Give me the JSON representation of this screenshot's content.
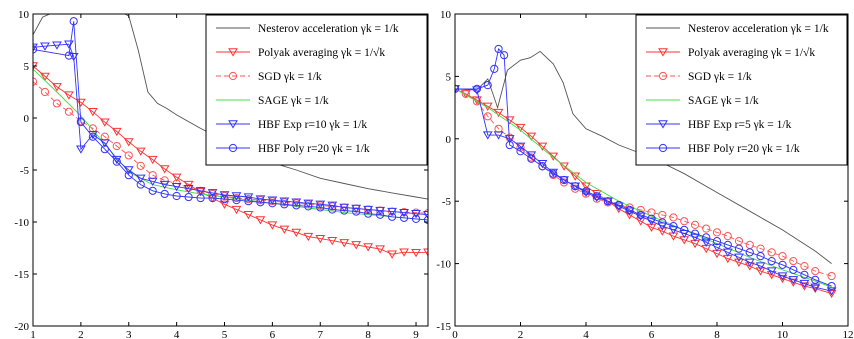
{
  "chart_data": [
    {
      "type": "line",
      "title": "",
      "xlabel": "",
      "ylabel": "",
      "xlim": [
        1,
        9.25
      ],
      "ylim": [
        -20,
        10
      ],
      "xticks": [
        "1",
        "2",
        "3",
        "4",
        "5",
        "6",
        "7",
        "8",
        "9"
      ],
      "yticks": [
        "10",
        "5",
        "0",
        "-5",
        "-10",
        "-15",
        "-20"
      ],
      "legend_position": "top-right",
      "grid": false,
      "series": [
        {
          "name": "Nesterov acceleration γk = 1/k",
          "color": "#555555",
          "marker": "none",
          "dash": "solid",
          "x": [
            1,
            1.2,
            1.5,
            2,
            2.5,
            2.8,
            3.0,
            3.2,
            3.4,
            3.6,
            3.8,
            4.0,
            4.5,
            5,
            5.5,
            6,
            6.5,
            7,
            7.5,
            8,
            8.5,
            9,
            9.25
          ],
          "y": [
            8,
            9.7,
            10.3,
            10.8,
            10.7,
            10.3,
            9.8,
            6.5,
            2.5,
            1.4,
            0.9,
            0.3,
            -1,
            -2.2,
            -3.3,
            -4.3,
            -5.0,
            -5.8,
            -6.3,
            -6.8,
            -7.2,
            -7.6,
            -7.8
          ]
        },
        {
          "name": "Polyak averaging γk = 1/√k",
          "color": "#ff3333",
          "marker": "tri-down",
          "dash": "solid",
          "x": [
            1,
            1.25,
            1.5,
            1.75,
            2,
            2.25,
            2.5,
            2.75,
            3,
            3.25,
            3.5,
            3.75,
            4,
            4.25,
            4.5,
            4.75,
            5,
            5.25,
            5.5,
            5.75,
            6,
            6.25,
            6.5,
            6.75,
            7,
            7.25,
            7.5,
            7.75,
            8,
            8.25,
            8.5,
            8.75,
            9,
            9.25
          ],
          "y": [
            5,
            4,
            3,
            2.2,
            1.5,
            0.6,
            -0.4,
            -1.3,
            -2.3,
            -3.2,
            -4.0,
            -4.9,
            -5.7,
            -6.4,
            -7.1,
            -7.7,
            -8.3,
            -8.8,
            -9.3,
            -9.8,
            -10.3,
            -10.7,
            -11.0,
            -11.4,
            -11.6,
            -11.8,
            -12.0,
            -12.2,
            -12.4,
            -12.6,
            -13.1,
            -12.9,
            -12.95,
            -12.9
          ]
        },
        {
          "name": "SGD γk = 1/k",
          "color": "#ff5555",
          "marker": "circle",
          "dash": "dashed",
          "x": [
            1,
            1.25,
            1.5,
            1.75,
            2,
            2.25,
            2.5,
            2.75,
            3,
            3.25,
            3.5,
            3.75,
            4,
            4.25,
            4.5,
            4.75,
            5,
            5.25,
            5.5,
            5.75,
            6,
            6.25,
            6.5,
            6.75,
            7,
            7.25,
            7.5,
            7.75,
            8,
            8.25,
            8.5,
            8.75,
            9,
            9.25
          ],
          "y": [
            3.5,
            2.5,
            1.4,
            0.6,
            -0.3,
            -1.0,
            -1.8,
            -2.7,
            -3.6,
            -4.6,
            -5.5,
            -6.0,
            -6.3,
            -6.7,
            -7.0,
            -7.3,
            -7.5,
            -7.7,
            -7.8,
            -7.9,
            -8.0,
            -8.1,
            -8.2,
            -8.3,
            -8.4,
            -8.5,
            -8.6,
            -8.7,
            -8.8,
            -8.9,
            -9.0,
            -9.05,
            -9.1,
            -9.15
          ]
        },
        {
          "name": "SAGE γk = 1/k",
          "color": "#44dd44",
          "marker": "none",
          "dash": "solid",
          "x": [
            1,
            1.5,
            2,
            2.5,
            3,
            3.5,
            4,
            4.5,
            5,
            5.5,
            6,
            6.5,
            7,
            7.5,
            8,
            8.5,
            9,
            9.25
          ],
          "y": [
            4.7,
            2.5,
            0.2,
            -2.5,
            -5.2,
            -6.4,
            -6.9,
            -7.3,
            -7.6,
            -7.9,
            -8.2,
            -8.5,
            -8.8,
            -9.1,
            -9.3,
            -9.5,
            -9.7,
            -9.8
          ]
        },
        {
          "name": "HBF Exp r=10 γk = 1/k",
          "color": "#3333ff",
          "marker": "tri-down",
          "dash": "solid",
          "x": [
            1,
            1.25,
            1.5,
            1.75,
            1.85,
            2,
            2.25,
            2.5,
            2.75,
            3,
            3.25,
            3.5,
            3.75,
            4,
            4.25,
            4.5,
            4.75,
            5,
            5.25,
            5.5,
            5.75,
            6,
            6.25,
            6.5,
            6.75,
            7,
            7.25,
            7.5,
            7.75,
            8,
            8.25,
            8.5,
            8.75,
            9,
            9.25
          ],
          "y": [
            6.8,
            6.9,
            7.0,
            7.1,
            5.9,
            -3.0,
            -1.6,
            -2.4,
            -4.0,
            -5.0,
            -5.8,
            -6.1,
            -6.4,
            -6.6,
            -6.8,
            -7.0,
            -7.2,
            -7.4,
            -7.5,
            -7.6,
            -7.8,
            -7.9,
            -8.0,
            -8.1,
            -8.2,
            -8.3,
            -8.4,
            -8.6,
            -8.7,
            -8.8,
            -8.9,
            -9.0,
            -9.1,
            -9.2,
            -9.3
          ]
        },
        {
          "name": "HBF Poly r=20 γk = 1/k",
          "color": "#3333ff",
          "marker": "circle",
          "dash": "solid",
          "x": [
            1,
            1.75,
            1.85,
            2,
            2.25,
            2.5,
            2.75,
            3,
            3.25,
            3.5,
            3.75,
            4,
            4.25,
            4.5,
            4.75,
            5,
            5.25,
            5.5,
            5.75,
            6,
            6.25,
            6.5,
            6.75,
            7,
            7.25,
            7.5,
            7.75,
            8,
            8.25,
            8.5,
            8.75,
            9,
            9.25
          ],
          "y": [
            6.6,
            6.0,
            9.3,
            -0.4,
            -1.8,
            -3.0,
            -4.2,
            -5.5,
            -6.4,
            -7.0,
            -7.3,
            -7.5,
            -7.6,
            -7.7,
            -7.7,
            -7.8,
            -7.9,
            -8.0,
            -8.1,
            -8.2,
            -8.3,
            -8.4,
            -8.5,
            -8.6,
            -8.8,
            -8.9,
            -9.0,
            -9.2,
            -9.3,
            -9.5,
            -9.6,
            -9.7,
            -9.8
          ]
        }
      ]
    },
    {
      "type": "line",
      "title": "",
      "xlabel": "",
      "ylabel": "",
      "xlim": [
        0,
        12
      ],
      "ylim": [
        -15,
        10
      ],
      "xticks": [
        "0",
        "2",
        "4",
        "6",
        "8",
        "10",
        "12"
      ],
      "yticks": [
        "10",
        "5",
        "0",
        "-5",
        "-10",
        "-15"
      ],
      "legend_position": "top-right",
      "grid": false,
      "series": [
        {
          "name": "Nesterov acceleration γk = 1/k",
          "color": "#555555",
          "marker": "none",
          "dash": "solid",
          "x": [
            0,
            0.7,
            1.0,
            1.3,
            1.6,
            2.0,
            2.3,
            2.6,
            3.0,
            3.3,
            3.6,
            4,
            4.5,
            5,
            6,
            7,
            8,
            9,
            10,
            11,
            11.5
          ],
          "y": [
            4,
            4,
            4.8,
            2.5,
            5.5,
            6.3,
            6.5,
            7.0,
            6.0,
            4.5,
            2.0,
            0.8,
            0.2,
            -0.5,
            -1.5,
            -2.8,
            -4.3,
            -5.8,
            -7.3,
            -9.0,
            -10.0
          ]
        },
        {
          "name": "Polyak averaging γk = 1/√k",
          "color": "#ff3333",
          "marker": "tri-down",
          "dash": "solid",
          "x": [
            0,
            0.33,
            0.67,
            1.0,
            1.33,
            1.67,
            2.0,
            2.33,
            2.67,
            3.0,
            3.33,
            3.67,
            4.0,
            4.33,
            4.67,
            5.0,
            5.33,
            5.67,
            6.0,
            6.33,
            6.67,
            7.0,
            7.33,
            7.67,
            8.0,
            8.33,
            8.67,
            9.0,
            9.33,
            9.67,
            10.0,
            10.33,
            10.67,
            11.0,
            11.5
          ],
          "y": [
            4,
            3.6,
            3.1,
            2.6,
            2.1,
            1.5,
            0.9,
            0.2,
            -0.6,
            -1.4,
            -2.2,
            -3.0,
            -3.8,
            -4.4,
            -5.0,
            -5.6,
            -6.1,
            -6.6,
            -7.1,
            -7.4,
            -7.8,
            -8.1,
            -8.4,
            -8.8,
            -9.2,
            -9.6,
            -9.9,
            -10.2,
            -10.6,
            -10.9,
            -11.2,
            -11.5,
            -11.8,
            -12.0,
            -12.4
          ]
        },
        {
          "name": "SGD γk = 1/k",
          "color": "#ff5555",
          "marker": "circle",
          "dash": "dashed",
          "x": [
            0,
            0.33,
            0.67,
            1.0,
            1.33,
            1.67,
            2.0,
            2.33,
            2.67,
            3.0,
            3.33,
            3.67,
            4.0,
            4.33,
            4.67,
            5.0,
            5.33,
            5.67,
            6.0,
            6.33,
            6.67,
            7.0,
            7.33,
            7.67,
            8.0,
            8.33,
            8.67,
            9.0,
            9.33,
            9.67,
            10.0,
            10.33,
            10.67,
            11.0,
            11.5
          ],
          "y": [
            4,
            3.6,
            3.0,
            1.8,
            0.8,
            0.1,
            -0.7,
            -1.5,
            -2.2,
            -2.9,
            -3.5,
            -4.0,
            -4.4,
            -4.8,
            -5.1,
            -5.3,
            -5.5,
            -5.7,
            -5.9,
            -6.1,
            -6.3,
            -6.6,
            -6.9,
            -7.2,
            -7.5,
            -7.8,
            -8.2,
            -8.5,
            -8.8,
            -9.1,
            -9.4,
            -9.8,
            -10.2,
            -10.6,
            -11.0
          ]
        },
        {
          "name": "SAGE γk = 1/k",
          "color": "#44dd44",
          "marker": "none",
          "dash": "solid",
          "x": [
            0,
            1,
            2,
            3,
            4,
            5,
            6,
            7,
            8,
            9,
            10,
            11,
            11.5
          ],
          "y": [
            4,
            2.5,
            0.7,
            -1.5,
            -3.5,
            -5.0,
            -6.2,
            -7.3,
            -8.4,
            -9.5,
            -10.5,
            -11.4,
            -11.9
          ]
        },
        {
          "name": "HBF Exp r=5 γk = 1/k",
          "color": "#3333ff",
          "marker": "tri-down",
          "dash": "solid",
          "x": [
            0,
            0.67,
            1.0,
            1.33,
            1.67,
            2.0,
            2.33,
            2.67,
            3.0,
            3.33,
            3.67,
            4.0,
            4.33,
            4.67,
            5.0,
            5.33,
            5.67,
            6.0,
            6.33,
            6.67,
            7.0,
            7.33,
            7.67,
            8.0,
            8.33,
            8.67,
            9.0,
            9.33,
            9.67,
            10.0,
            10.33,
            10.67,
            11.0,
            11.5
          ],
          "y": [
            4,
            3.9,
            0.3,
            0.3,
            0.0,
            -0.6,
            -1.3,
            -2.0,
            -2.7,
            -3.3,
            -3.8,
            -4.3,
            -4.7,
            -5.0,
            -5.4,
            -5.8,
            -6.2,
            -6.6,
            -7.0,
            -7.3,
            -7.6,
            -7.9,
            -8.3,
            -8.7,
            -9.1,
            -9.5,
            -9.9,
            -10.2,
            -10.6,
            -11.0,
            -11.3,
            -11.6,
            -11.9,
            -12.2
          ]
        },
        {
          "name": "HBF Poly r=20 γk = 1/k",
          "color": "#3333ff",
          "marker": "circle",
          "dash": "solid",
          "x": [
            0,
            0.67,
            1.0,
            1.2,
            1.33,
            1.5,
            1.67,
            2.0,
            2.33,
            2.67,
            3.0,
            3.33,
            3.67,
            4.0,
            4.33,
            4.67,
            5.0,
            5.33,
            5.67,
            6.0,
            6.33,
            6.67,
            7.0,
            7.33,
            7.67,
            8.0,
            8.33,
            8.67,
            9.0,
            9.33,
            9.67,
            10.0,
            10.33,
            10.67,
            11.0,
            11.5
          ],
          "y": [
            4,
            4.0,
            4.3,
            5.6,
            7.2,
            6.7,
            -0.5,
            -1.0,
            -1.6,
            -2.2,
            -2.8,
            -3.3,
            -3.8,
            -4.2,
            -4.6,
            -5.0,
            -5.3,
            -5.7,
            -6.1,
            -6.4,
            -6.7,
            -7.0,
            -7.3,
            -7.6,
            -7.9,
            -8.2,
            -8.5,
            -8.8,
            -9.1,
            -9.4,
            -9.8,
            -10.1,
            -10.5,
            -10.9,
            -11.3,
            -11.8
          ]
        }
      ]
    }
  ]
}
